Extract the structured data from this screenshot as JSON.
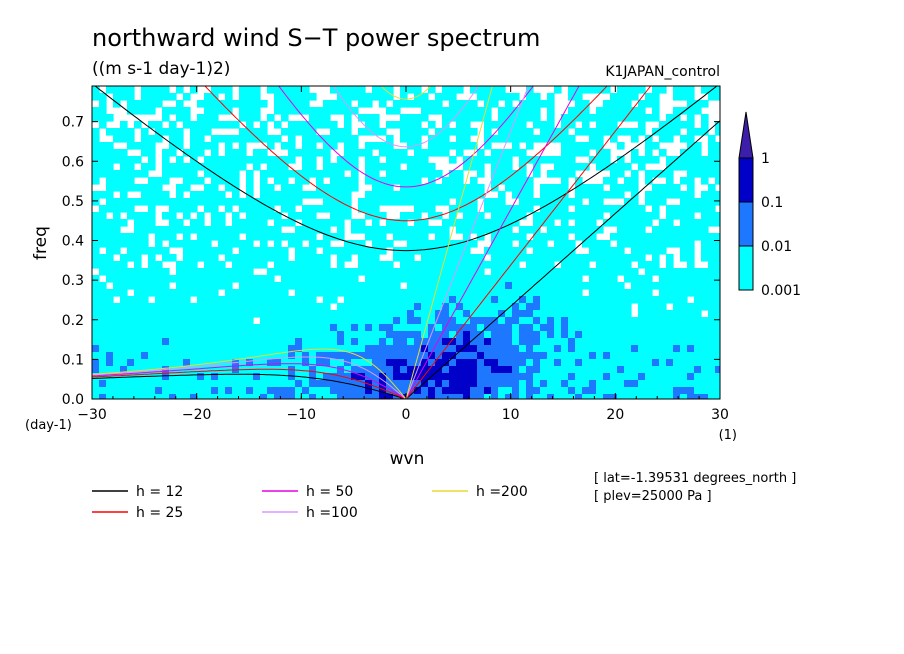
{
  "chart_data": {
    "type": "heatmap",
    "title": "northward wind S−T power spectrum",
    "subtitle": "((m s-1 day-1)2)",
    "run_label": "K1JAPAN_control",
    "xlabel": "wvn",
    "ylabel": "freq",
    "x_unit": "(1)",
    "y_unit": "(day-1)",
    "xlim": [
      -30,
      30
    ],
    "ylim": [
      0,
      0.79
    ],
    "x_ticks": [
      -30,
      -20,
      -10,
      0,
      10,
      20,
      30
    ],
    "x_tick_labels": [
      "−30",
      "−20",
      "−10",
      "0",
      "10",
      "20",
      "30"
    ],
    "y_ticks": [
      0,
      0.1,
      0.2,
      0.3,
      0.4,
      0.5,
      0.6,
      0.7
    ],
    "y_tick_labels": [
      "0.0",
      "0.1",
      "0.2",
      "0.3",
      "0.4",
      "0.5",
      "0.6",
      "0.7"
    ],
    "colorbar": {
      "levels": [
        "0.001",
        "0.01",
        "0.1",
        "1"
      ],
      "colors": [
        "#00ffff",
        "#1e78ff",
        "#0000c8",
        "#3c1eaa"
      ]
    },
    "contour_regions": {
      "note_free": true,
      "strong_center_x": [
        -2,
        12
      ],
      "strong_center_y": [
        0.0,
        0.22
      ]
    },
    "dispersion_curves": [
      {
        "h": 12,
        "label": "h = 12",
        "color": "#000000"
      },
      {
        "h": 25,
        "label": "h = 25",
        "color": "#ff0000"
      },
      {
        "h": 50,
        "label": "h = 50",
        "color": "#e600e6"
      },
      {
        "h": 100,
        "label": "h =100",
        "color": "#dc96ff"
      },
      {
        "h": 200,
        "label": "h =200",
        "color": "#e6dc32"
      }
    ],
    "annotations": [
      "[ lat=-1.39531 degrees_north ]",
      "[ plev=25000 Pa ]"
    ]
  }
}
